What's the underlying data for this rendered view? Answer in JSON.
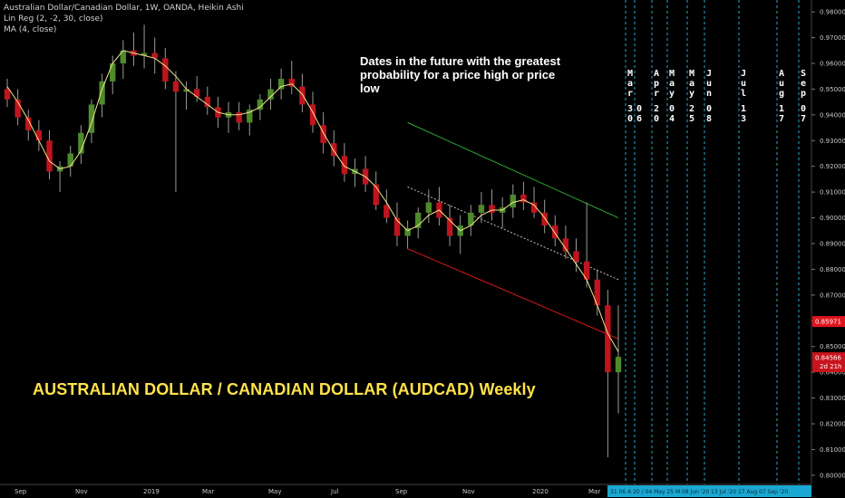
{
  "header": {
    "symbol_line": "Australian Dollar/Canadian Dollar, 1W, OANDA, Heikin Ashi",
    "indicator_1": "Lin Reg (2, -2, 30, close)",
    "indicator_2": "MA (4, close)"
  },
  "annotation": "Dates in the future with the greatest probability for a price high or price low",
  "chart_title": "AUSTRALIAN DOLLAR / CANADIAN DOLLAR (AUDCAD) Weekly",
  "colors": {
    "up": "#4f8a2b",
    "down": "#c0141e",
    "ma": "#f0e68c",
    "upper_channel": "#2ea82e",
    "lower_channel": "#e01818",
    "mid_channel": "#bfbfbf",
    "vlines": "#2aa5c8",
    "title": "#ffe24a",
    "price_tag_1": "#e0141e",
    "price_tag_2": "#c8141c"
  },
  "price_tags": {
    "tag_1": "0.85971",
    "tag_2": "0.84566",
    "countdown": "2d 21h"
  },
  "footer_dates": "31 06 A  20 / 04 May 25 M 08 Jun '20  13 Jul '20  17 Aug  07 Sep '20",
  "chart_data": {
    "type": "candlestick",
    "title": "Australian Dollar/Canadian Dollar, 1W, OANDA, Heikin Ashi",
    "y_ticks": [
      "0.98000",
      "0.97000",
      "0.96000",
      "0.95000",
      "0.94000",
      "0.93000",
      "0.92000",
      "0.91000",
      "0.90000",
      "0.89000",
      "0.88000",
      "0.87000",
      "0.86000",
      "0.85000",
      "0.84000",
      "0.83000",
      "0.82000",
      "0.81000",
      "0.80000"
    ],
    "ylim": [
      0.7975,
      0.9825
    ],
    "x_ticks": [
      "Sep",
      "Nov",
      "2019",
      "Mar",
      "May",
      "Jul",
      "Sep",
      "Nov",
      "2020",
      "Mar"
    ],
    "candles_ohlc": [
      [
        0.95,
        0.954,
        0.943,
        0.946
      ],
      [
        0.946,
        0.95,
        0.936,
        0.939
      ],
      [
        0.939,
        0.942,
        0.93,
        0.934
      ],
      [
        0.934,
        0.938,
        0.926,
        0.93
      ],
      [
        0.93,
        0.934,
        0.915,
        0.918
      ],
      [
        0.918,
        0.922,
        0.91,
        0.92
      ],
      [
        0.92,
        0.928,
        0.916,
        0.925
      ],
      [
        0.925,
        0.936,
        0.921,
        0.933
      ],
      [
        0.933,
        0.946,
        0.929,
        0.944
      ],
      [
        0.944,
        0.956,
        0.939,
        0.953
      ],
      [
        0.953,
        0.963,
        0.948,
        0.96
      ],
      [
        0.96,
        0.969,
        0.954,
        0.965
      ],
      [
        0.965,
        0.972,
        0.959,
        0.963
      ],
      [
        0.963,
        0.975,
        0.958,
        0.964
      ],
      [
        0.964,
        0.97,
        0.956,
        0.962
      ],
      [
        0.962,
        0.966,
        0.95,
        0.953
      ],
      [
        0.953,
        0.957,
        0.91,
        0.949
      ],
      [
        0.949,
        0.953,
        0.942,
        0.95
      ],
      [
        0.95,
        0.955,
        0.945,
        0.947
      ],
      [
        0.947,
        0.951,
        0.94,
        0.943
      ],
      [
        0.943,
        0.947,
        0.935,
        0.939
      ],
      [
        0.939,
        0.945,
        0.933,
        0.941
      ],
      [
        0.941,
        0.945,
        0.934,
        0.937
      ],
      [
        0.937,
        0.944,
        0.932,
        0.942
      ],
      [
        0.942,
        0.948,
        0.938,
        0.946
      ],
      [
        0.946,
        0.954,
        0.942,
        0.95
      ],
      [
        0.95,
        0.958,
        0.946,
        0.954
      ],
      [
        0.954,
        0.961,
        0.948,
        0.951
      ],
      [
        0.951,
        0.956,
        0.941,
        0.944
      ],
      [
        0.944,
        0.949,
        0.933,
        0.936
      ],
      [
        0.936,
        0.941,
        0.925,
        0.929
      ],
      [
        0.929,
        0.934,
        0.92,
        0.924
      ],
      [
        0.924,
        0.929,
        0.914,
        0.917
      ],
      [
        0.917,
        0.923,
        0.912,
        0.919
      ],
      [
        0.919,
        0.924,
        0.91,
        0.913
      ],
      [
        0.913,
        0.918,
        0.903,
        0.905
      ],
      [
        0.905,
        0.911,
        0.898,
        0.9
      ],
      [
        0.9,
        0.906,
        0.889,
        0.893
      ],
      [
        0.893,
        0.899,
        0.888,
        0.896
      ],
      [
        0.896,
        0.904,
        0.892,
        0.902
      ],
      [
        0.902,
        0.911,
        0.898,
        0.906
      ],
      [
        0.906,
        0.912,
        0.897,
        0.9
      ],
      [
        0.9,
        0.905,
        0.889,
        0.893
      ],
      [
        0.893,
        0.901,
        0.886,
        0.897
      ],
      [
        0.897,
        0.905,
        0.893,
        0.902
      ],
      [
        0.902,
        0.91,
        0.898,
        0.905
      ],
      [
        0.905,
        0.911,
        0.899,
        0.902
      ],
      [
        0.902,
        0.908,
        0.896,
        0.904
      ],
      [
        0.904,
        0.913,
        0.9,
        0.909
      ],
      [
        0.909,
        0.914,
        0.903,
        0.906
      ],
      [
        0.906,
        0.912,
        0.9,
        0.902
      ],
      [
        0.902,
        0.907,
        0.894,
        0.897
      ],
      [
        0.897,
        0.901,
        0.889,
        0.892
      ],
      [
        0.892,
        0.897,
        0.884,
        0.887
      ],
      [
        0.887,
        0.892,
        0.879,
        0.883
      ],
      [
        0.883,
        0.906,
        0.873,
        0.876
      ],
      [
        0.876,
        0.88,
        0.862,
        0.866
      ],
      [
        0.866,
        0.872,
        0.807,
        0.84
      ],
      [
        0.84,
        0.866,
        0.824,
        0.846
      ]
    ],
    "moving_average": [
      0.951,
      0.945,
      0.938,
      0.93,
      0.922,
      0.919,
      0.92,
      0.926,
      0.937,
      0.95,
      0.96,
      0.965,
      0.964,
      0.963,
      0.962,
      0.959,
      0.955,
      0.95,
      0.947,
      0.944,
      0.941,
      0.94,
      0.94,
      0.941,
      0.943,
      0.947,
      0.951,
      0.952,
      0.948,
      0.941,
      0.933,
      0.926,
      0.92,
      0.918,
      0.916,
      0.912,
      0.906,
      0.899,
      0.895,
      0.897,
      0.901,
      0.903,
      0.899,
      0.895,
      0.897,
      0.901,
      0.903,
      0.903,
      0.906,
      0.907,
      0.905,
      0.9,
      0.894,
      0.888,
      0.882,
      0.876,
      0.866,
      0.855,
      0.848
    ],
    "channel_upper": [
      [
        0.937,
        0.9
      ]
    ],
    "channel_lower": [
      [
        0.888,
        0.853
      ]
    ],
    "channel_mid": [
      [
        0.912,
        0.876
      ]
    ],
    "future_dates": [
      {
        "label_top": "Mar",
        "label_bottom": "30"
      },
      {
        "label_top": "Apr",
        "label_bottom": "06"
      },
      {
        "label_top": "Apr",
        "label_bottom": "20"
      },
      {
        "label_top": "May",
        "label_bottom": "04"
      },
      {
        "label_top": "May",
        "label_bottom": "25"
      },
      {
        "label_top": "Jun",
        "label_bottom": "08"
      },
      {
        "label_top": "Jul",
        "label_bottom": "13"
      },
      {
        "label_top": "Aug",
        "label_bottom": "17"
      },
      {
        "label_top": "Sep",
        "label_bottom": "07"
      }
    ]
  }
}
